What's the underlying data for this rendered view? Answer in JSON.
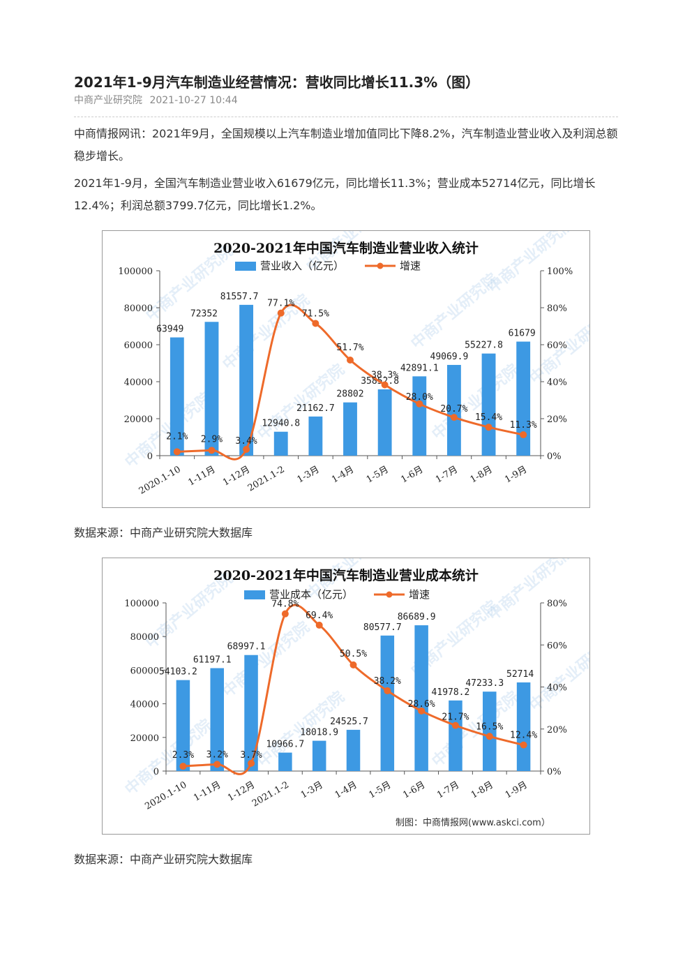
{
  "article": {
    "title": "2021年1-9月汽车制造业经营情况：营收同比增长11.3%（图）",
    "source": "中商产业研究院",
    "datetime": "2021-10-27 10:44",
    "paragraphs": [
      "中商情报网讯：2021年9月，全国规模以上汽车制造业增加值同比下降8.2%，汽车制造业营业收入及利润总额稳步增长。",
      "2021年1-9月，全国汽车制造业营业收入61679亿元，同比增长11.3%；营业成本52714亿元，同比增长12.4%；利润总额3799.7亿元，同比增长1.2%。"
    ],
    "data_source_1": "数据来源：中商产业研究院大数据库",
    "data_source_2": "数据来源：中商产业研究院大数据库"
  },
  "colors": {
    "bar": "#3d99e3",
    "line": "#ee6a2a",
    "watermark": "#9fc6e8"
  },
  "watermark_text": "中商产业研究院",
  "chart_data": [
    {
      "type": "bar",
      "title": "2020-2021年中国汽车制造业营业收入统计",
      "categories": [
        "2020.1-10",
        "1-11月",
        "1-12月",
        "2021.1-2",
        "1-3月",
        "1-4月",
        "1-5月",
        "1-6月",
        "1-7月",
        "1-8月",
        "1-9月"
      ],
      "series": [
        {
          "name": "营业收入（亿元）",
          "type": "bar",
          "axis": "left",
          "values": [
            63949,
            72352,
            81557.7,
            12940.8,
            21162.7,
            28802,
            35852.8,
            42891.1,
            49069.9,
            55227.8,
            61679
          ],
          "labels": [
            "63949",
            "72352",
            "81557.7",
            "12940.8",
            "21162.7",
            "28802",
            "35852.8",
            "42891.1",
            "49069.9",
            "55227.8",
            "61679"
          ]
        },
        {
          "name": "增速",
          "type": "line",
          "axis": "right",
          "values": [
            2.1,
            2.9,
            3.4,
            77.1,
            71.5,
            51.7,
            38.3,
            28.0,
            20.7,
            15.4,
            11.3
          ],
          "labels": [
            "2.1%",
            "2.9%",
            "3.4%",
            "77.1%",
            "71.5%",
            "51.7%",
            "38.3%",
            "28.0%",
            "20.7%",
            "15.4%",
            "11.3%"
          ]
        }
      ],
      "left_ticks": [
        "0",
        "20000",
        "40000",
        "60000",
        "80000",
        "100000"
      ],
      "right_ticks": [
        "0%",
        "20%",
        "40%",
        "60%",
        "80%",
        "100%"
      ],
      "ylim": [
        0,
        100000
      ],
      "y2lim": [
        0,
        100
      ],
      "legend_position": "top",
      "grid": false,
      "credit": ""
    },
    {
      "type": "bar",
      "title": "2020-2021年中国汽车制造业营业成本统计",
      "categories": [
        "2020.1-10",
        "1-11月",
        "1-12月",
        "2021.1-2",
        "1-3月",
        "1-4月",
        "1-5月",
        "1-6月",
        "1-7月",
        "1-8月",
        "1-9月"
      ],
      "series": [
        {
          "name": "营业成本（亿元）",
          "type": "bar",
          "axis": "left",
          "values": [
            54103.2,
            61197.1,
            68997.1,
            10966.7,
            18018.9,
            24525.7,
            80577.7,
            86689.9,
            41978.2,
            47233.3,
            52714
          ],
          "labels": [
            "54103.2",
            "61197.1",
            "68997.1",
            "10966.7",
            "18018.9",
            "24525.7",
            "80577.7",
            "86689.9",
            "41978.2",
            "47233.3",
            "52714"
          ]
        },
        {
          "name": "增速",
          "type": "line",
          "axis": "right",
          "values": [
            2.3,
            3.2,
            3.7,
            74.8,
            69.4,
            50.5,
            38.2,
            28.6,
            21.7,
            16.5,
            12.4
          ],
          "labels": [
            "2.3%",
            "3.2%",
            "3.7%",
            "74.8%",
            "69.4%",
            "50.5%",
            "38.2%",
            "28.6%",
            "21.7%",
            "16.5%",
            "12.4%"
          ]
        }
      ],
      "left_ticks": [
        "0",
        "20000",
        "40000",
        "60000",
        "80000",
        "100000"
      ],
      "right_ticks": [
        "0%",
        "20%",
        "40%",
        "60%",
        "80%"
      ],
      "ylim": [
        0,
        100000
      ],
      "y2lim": [
        0,
        80
      ],
      "legend_position": "top",
      "grid": false,
      "credit": "制图：中商情报网(www.askci.com）"
    }
  ]
}
